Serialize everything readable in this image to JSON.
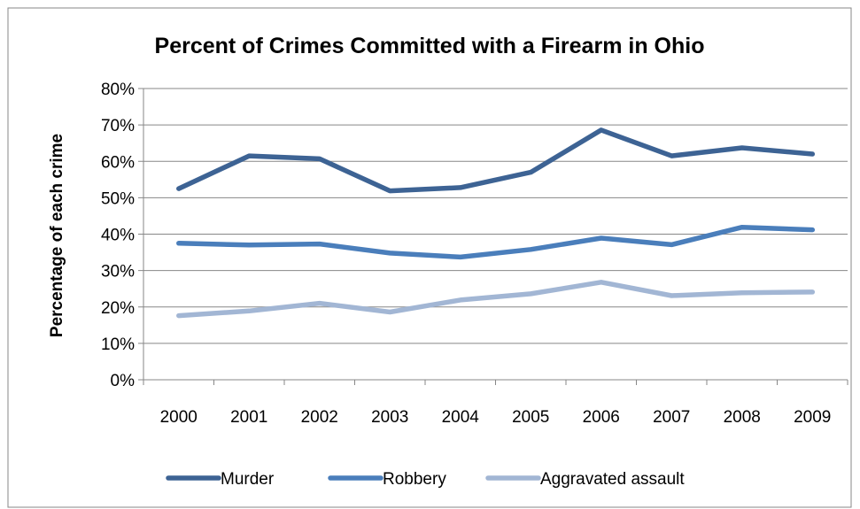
{
  "chart_data": {
    "type": "line",
    "title": "Percent of Crimes Committed with a Firearm in Ohio",
    "xlabel": "",
    "ylabel": "Percentage of each crime",
    "categories": [
      "2000",
      "2001",
      "2002",
      "2003",
      "2004",
      "2005",
      "2006",
      "2007",
      "2008",
      "2009"
    ],
    "ylim": [
      0,
      80
    ],
    "yticks": [
      "0%",
      "10%",
      "20%",
      "30%",
      "40%",
      "50%",
      "60%",
      "70%",
      "80%"
    ],
    "grid": true,
    "legend_position": "bottom",
    "series": [
      {
        "name": "Murder",
        "color": "#3d6394",
        "values": [
          52.5,
          61.5,
          60.7,
          51.9,
          52.8,
          57.0,
          68.6,
          61.5,
          63.7,
          62.0
        ]
      },
      {
        "name": "Robbery",
        "color": "#4a7ebb",
        "values": [
          37.5,
          37.0,
          37.3,
          34.8,
          33.7,
          35.8,
          38.9,
          37.1,
          41.9,
          41.2
        ]
      },
      {
        "name": "Aggravated assault",
        "color": "#a2b6d4",
        "values": [
          17.6,
          18.9,
          21.0,
          18.6,
          21.9,
          23.6,
          26.8,
          23.1,
          23.9,
          24.1
        ]
      }
    ]
  }
}
